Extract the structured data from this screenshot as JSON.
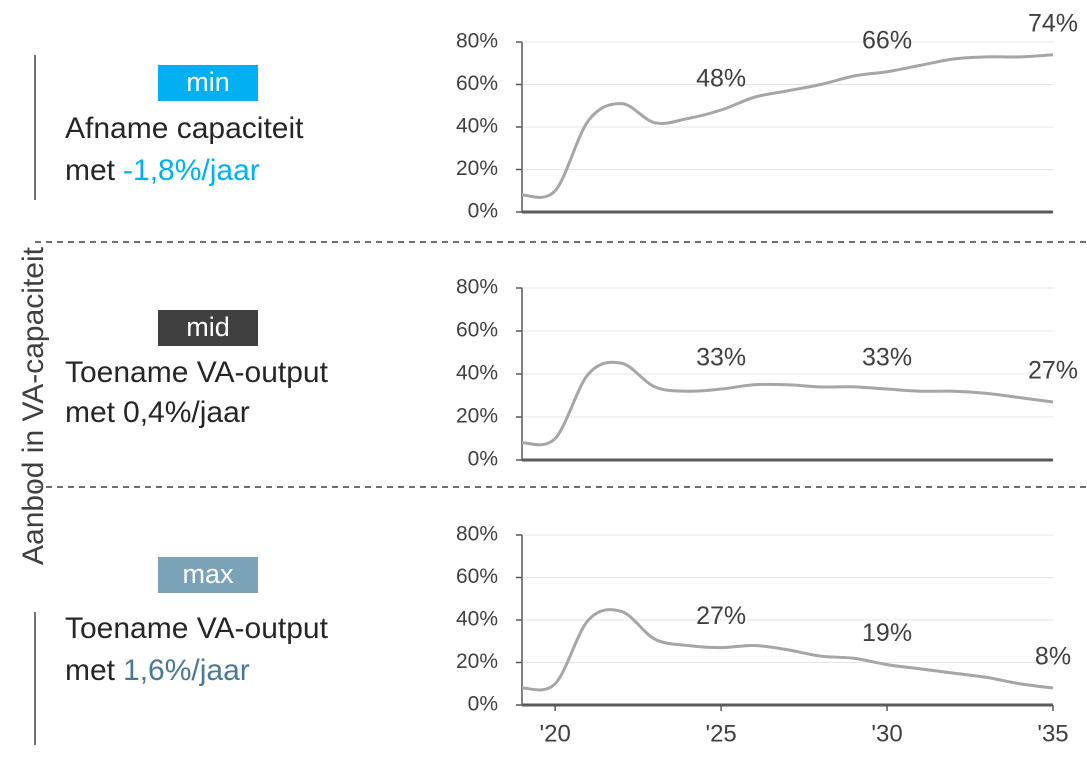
{
  "side_label": "Aanbod in VA-capaciteit",
  "chart_data": [
    {
      "type": "line",
      "tag": "min",
      "tag_color": "#00b0f0",
      "description": "Afname capaciteit",
      "rate_prefix": "met",
      "rate": "-1,8%/jaar",
      "rate_color": "#00b0f0",
      "x": [
        2019,
        2020,
        2021,
        2022,
        2023,
        2024,
        2025,
        2026,
        2027,
        2028,
        2029,
        2030,
        2031,
        2032,
        2033,
        2034,
        2035
      ],
      "series": [
        {
          "color": "#a6a6a6",
          "values": [
            8,
            10,
            43,
            51,
            42,
            44,
            48,
            54,
            57,
            60,
            64,
            66,
            69,
            72,
            73,
            73,
            74
          ],
          "value_labels": [
            null,
            null,
            null,
            null,
            null,
            null,
            "48%",
            null,
            null,
            null,
            null,
            "66%",
            null,
            null,
            null,
            null,
            "74%"
          ]
        }
      ],
      "xlim": [
        2019,
        2035
      ],
      "ylim": [
        0,
        80
      ],
      "yticks": [
        {
          "value": 0,
          "label": "0%"
        },
        {
          "value": 20,
          "label": "20%"
        },
        {
          "value": 40,
          "label": "40%"
        },
        {
          "value": 60,
          "label": "60%"
        },
        {
          "value": 80,
          "label": "80%"
        }
      ],
      "grid": true
    },
    {
      "type": "line",
      "tag": "mid",
      "tag_color": "#404040",
      "description": "Toename VA-output",
      "rate_prefix": "met",
      "rate": "0,4%/jaar",
      "rate_color": "#262626",
      "x": [
        2019,
        2020,
        2021,
        2022,
        2023,
        2024,
        2025,
        2026,
        2027,
        2028,
        2029,
        2030,
        2031,
        2032,
        2033,
        2034,
        2035
      ],
      "series": [
        {
          "color": "#a6a6a6",
          "values": [
            8,
            10,
            40,
            45,
            34,
            32,
            33,
            35,
            35,
            34,
            34,
            33,
            32,
            32,
            31,
            29,
            27
          ],
          "value_labels": [
            null,
            null,
            null,
            null,
            null,
            null,
            "33%",
            null,
            null,
            null,
            null,
            "33%",
            null,
            null,
            null,
            null,
            "27%"
          ]
        }
      ],
      "xlim": [
        2019,
        2035
      ],
      "ylim": [
        0,
        80
      ],
      "yticks": [
        {
          "value": 0,
          "label": "0%"
        },
        {
          "value": 20,
          "label": "20%"
        },
        {
          "value": 40,
          "label": "40%"
        },
        {
          "value": 60,
          "label": "60%"
        },
        {
          "value": 80,
          "label": "80%"
        }
      ],
      "grid": true
    },
    {
      "type": "line",
      "tag": "max",
      "tag_color": "#7aa3b8",
      "description": "Toename VA-output",
      "rate_prefix": "met",
      "rate": "1,6%/jaar",
      "rate_color": "#4a7a93",
      "x": [
        2019,
        2020,
        2021,
        2022,
        2023,
        2024,
        2025,
        2026,
        2027,
        2028,
        2029,
        2030,
        2031,
        2032,
        2033,
        2034,
        2035
      ],
      "series": [
        {
          "color": "#a6a6a6",
          "values": [
            8,
            10,
            40,
            44,
            31,
            28,
            27,
            28,
            26,
            23,
            22,
            19,
            17,
            15,
            13,
            10,
            8
          ],
          "value_labels": [
            null,
            null,
            null,
            null,
            null,
            null,
            "27%",
            null,
            null,
            null,
            null,
            "19%",
            null,
            null,
            null,
            null,
            "8%"
          ]
        }
      ],
      "xlim": [
        2019,
        2035
      ],
      "ylim": [
        0,
        80
      ],
      "xticks": [
        {
          "value": 2020,
          "label": "'20"
        },
        {
          "value": 2025,
          "label": "'25"
        },
        {
          "value": 2030,
          "label": "'30"
        },
        {
          "value": 2035,
          "label": "'35"
        }
      ],
      "yticks": [
        {
          "value": 0,
          "label": "0%"
        },
        {
          "value": 20,
          "label": "20%"
        },
        {
          "value": 40,
          "label": "40%"
        },
        {
          "value": 60,
          "label": "60%"
        },
        {
          "value": 80,
          "label": "80%"
        }
      ],
      "grid": true
    }
  ]
}
